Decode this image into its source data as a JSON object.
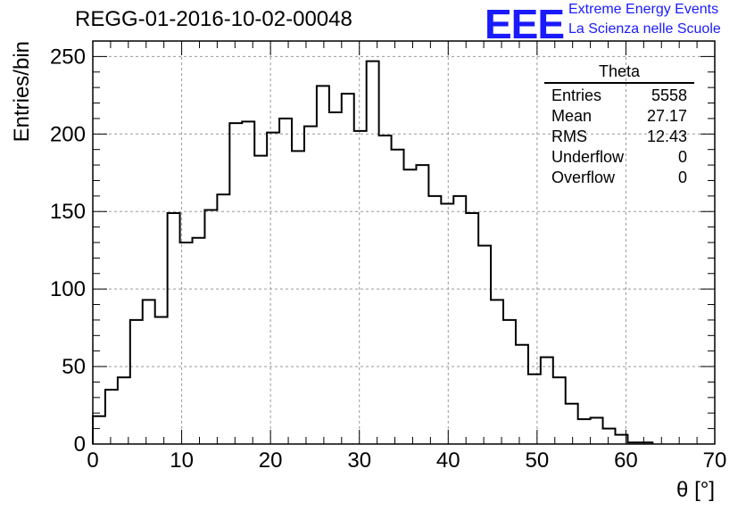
{
  "title": "REGG-01-2016-10-02-00048",
  "logo": {
    "mark": "EEE",
    "line1": "Extreme Energy Events",
    "line2": "La Scienza nelle Scuole",
    "color": "#1a1aff"
  },
  "stats": {
    "title": "Theta",
    "rows": [
      {
        "label": "Entries",
        "value": "5558"
      },
      {
        "label": "Mean",
        "value": "27.17"
      },
      {
        "label": "RMS",
        "value": "12.43"
      },
      {
        "label": "Underflow",
        "value": "0"
      },
      {
        "label": "Overflow",
        "value": "0"
      }
    ]
  },
  "chart_data": {
    "type": "bar",
    "xlabel": "θ [°]",
    "ylabel": "Entries/bin",
    "xlim": [
      0,
      70
    ],
    "ylim": [
      0,
      260
    ],
    "grid": true,
    "line_color": "#000000",
    "x_ticks": [
      0,
      10,
      20,
      30,
      40,
      50,
      60,
      70
    ],
    "y_ticks": [
      0,
      50,
      100,
      150,
      200,
      250
    ],
    "bin_width": 1.4,
    "values": [
      18,
      35,
      43,
      80,
      93,
      82,
      149,
      130,
      133,
      151,
      161,
      207,
      208,
      186,
      201,
      210,
      189,
      205,
      231,
      214,
      226,
      202,
      247,
      199,
      190,
      177,
      180,
      160,
      155,
      160,
      149,
      128,
      93,
      80,
      64,
      45,
      56,
      43,
      26,
      16,
      17,
      10,
      6,
      1,
      1
    ]
  }
}
